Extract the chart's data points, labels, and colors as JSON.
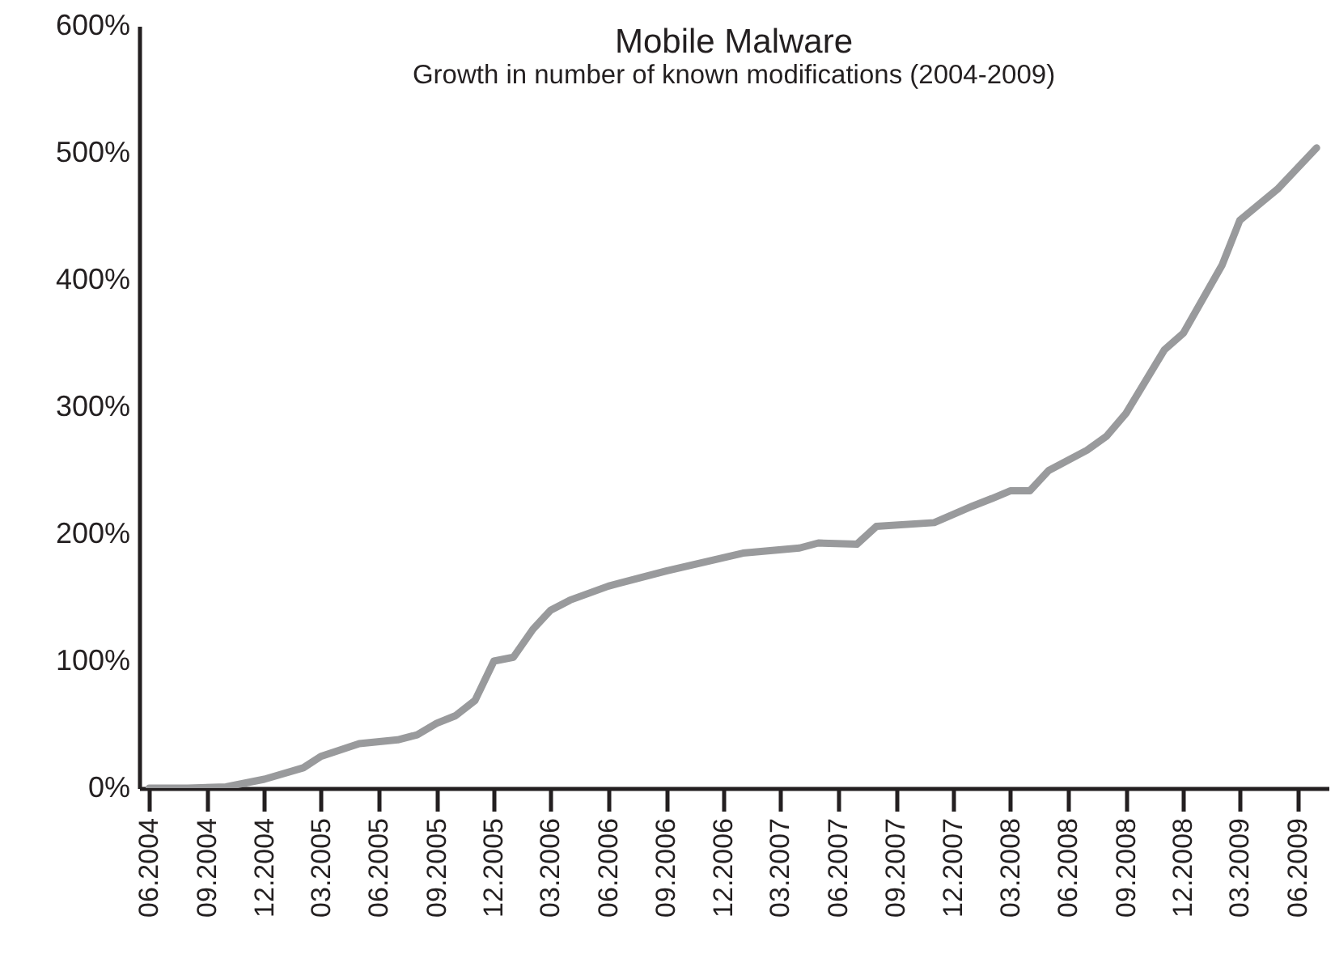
{
  "chart_data": {
    "type": "line",
    "title": "Mobile Malware",
    "subtitle": "Growth in number of known modifications (2004-2009)",
    "x": [
      "2004-06",
      "2004-08",
      "2004-10",
      "2004-12",
      "2005-02",
      "2005-03",
      "2005-05",
      "2005-07",
      "2005-08",
      "2005-09",
      "2005-10",
      "2005-11",
      "2005-12",
      "2006-01",
      "2006-02",
      "2006-03",
      "2006-04",
      "2006-06",
      "2006-09",
      "2007-01",
      "2007-04",
      "2007-05",
      "2007-07",
      "2007-08",
      "2007-11",
      "2008-01",
      "2008-02",
      "2008-03",
      "2008-04",
      "2008-05",
      "2008-07",
      "2008-08",
      "2008-09",
      "2008-11",
      "2008-12",
      "2009-02",
      "2009-03",
      "2009-05",
      "2009-07"
    ],
    "series": [
      {
        "color": "#999a9c",
        "values": [
          0,
          0,
          1,
          7,
          16,
          25,
          35,
          38,
          42,
          51,
          57,
          69,
          100,
          103,
          125,
          140,
          148,
          159,
          171,
          185,
          189,
          193,
          192,
          206,
          209,
          222,
          228,
          234,
          234,
          250,
          266,
          277,
          295,
          345,
          358,
          412,
          447,
          472,
          504
        ]
      }
    ],
    "xlim": [
      "2004-05-16",
      "2009-07-20"
    ],
    "xticks": [
      {
        "value": "2004-06",
        "label": "06.2004"
      },
      {
        "value": "2004-09",
        "label": "09.2004"
      },
      {
        "value": "2004-12",
        "label": "12.2004"
      },
      {
        "value": "2005-03",
        "label": "03.2005"
      },
      {
        "value": "2005-06",
        "label": "06.2005"
      },
      {
        "value": "2005-09",
        "label": "09.2005"
      },
      {
        "value": "2005-12",
        "label": "12.2005"
      },
      {
        "value": "2006-03",
        "label": "03.2006"
      },
      {
        "value": "2006-06",
        "label": "06.2006"
      },
      {
        "value": "2006-09",
        "label": "09.2006"
      },
      {
        "value": "2006-12",
        "label": "12.2006"
      },
      {
        "value": "2007-03",
        "label": "03.2007"
      },
      {
        "value": "2007-06",
        "label": "06.2007"
      },
      {
        "value": "2007-09",
        "label": "09.2007"
      },
      {
        "value": "2007-12",
        "label": "12.2007"
      },
      {
        "value": "2008-03",
        "label": "03.2008"
      },
      {
        "value": "2008-06",
        "label": "06.2008"
      },
      {
        "value": "2008-09",
        "label": "09.2008"
      },
      {
        "value": "2008-12",
        "label": "12.2008"
      },
      {
        "value": "2009-03",
        "label": "03.2009"
      },
      {
        "value": "2009-06",
        "label": "06.2009"
      }
    ],
    "ylim": [
      0,
      600
    ],
    "yticks": [
      {
        "value": 0,
        "label": "0%"
      },
      {
        "value": 100,
        "label": "100%"
      },
      {
        "value": 200,
        "label": "200%"
      },
      {
        "value": 300,
        "label": "300%"
      },
      {
        "value": 400,
        "label": "400%"
      },
      {
        "value": 500,
        "label": "500%"
      },
      {
        "value": 600,
        "label": "600%"
      }
    ],
    "grid": false,
    "legend": false
  }
}
